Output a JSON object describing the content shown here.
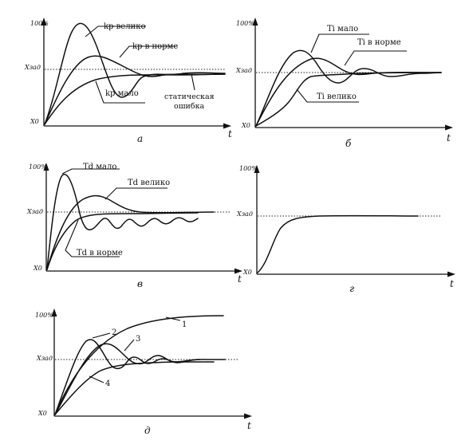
{
  "panels": {
    "a": {
      "letter": "а",
      "y_max": "100%",
      "y_setpoint": "Xзад",
      "y_origin": "X0",
      "x_axis": "t",
      "labels": {
        "kp_high": "kp велико",
        "kp_norm": "kp в норме",
        "kp_low": "kp мало",
        "static_error_1": "статическая",
        "static_error_2": "ошибка"
      }
    },
    "b": {
      "letter": "б",
      "y_max": "100%",
      "y_setpoint": "Xзад",
      "y_origin": "X0",
      "x_axis": "t",
      "labels": {
        "ti_low": "Ti мало",
        "ti_norm": "Ti в норме",
        "ti_high": "Ti велико"
      }
    },
    "v": {
      "letter": "в",
      "y_max": "100%",
      "y_setpoint": "Xзад",
      "y_origin": "X0",
      "x_axis": "t",
      "labels": {
        "td_low": "Td мало",
        "td_high": "Td велико",
        "td_norm": "Td в норме"
      }
    },
    "g": {
      "letter": "г",
      "y_max": "100%",
      "y_setpoint": "Xзад",
      "y_origin": "X0",
      "x_axis": "t"
    },
    "d": {
      "letter": "д",
      "y_max": "100%",
      "y_setpoint": "Xзад",
      "y_origin": "X0",
      "x_axis": "t",
      "labels": {
        "c1": "1",
        "c2": "2",
        "c3": "3",
        "c4": "4"
      }
    }
  }
}
